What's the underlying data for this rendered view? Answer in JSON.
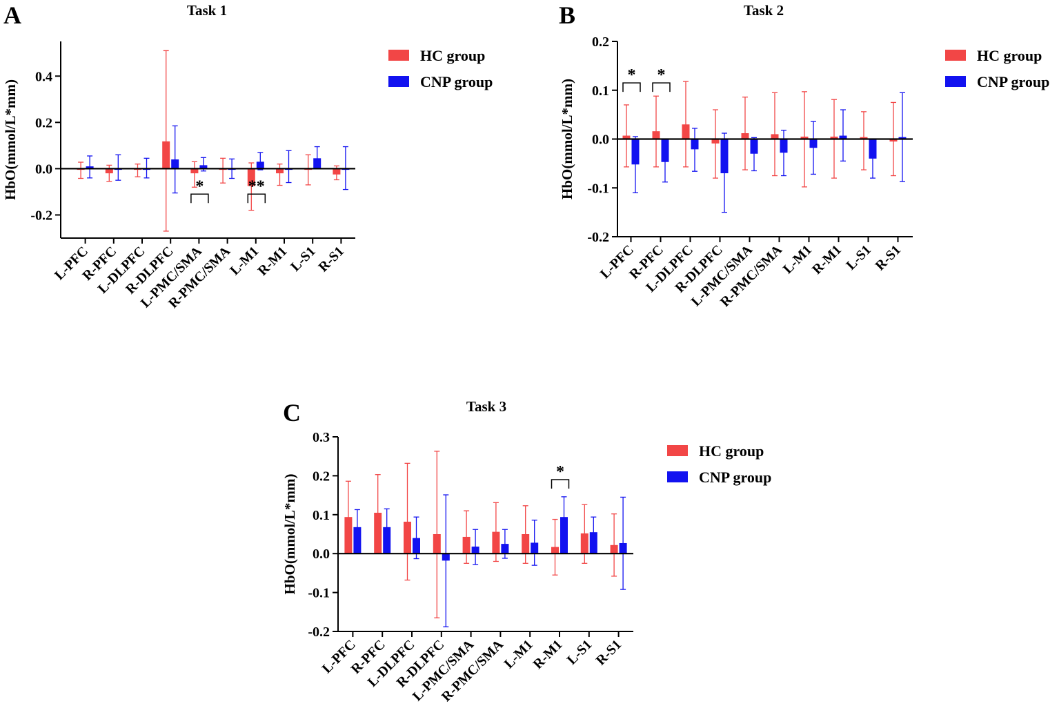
{
  "figure": {
    "colors": {
      "hc": "#f24646",
      "cnp": "#1212f0",
      "axis": "#000000"
    }
  },
  "chart_data": [
    {
      "panel_label": "A",
      "type": "bar",
      "title": "Task 1",
      "xlabel": "",
      "ylabel": "HbO(mmol/L*mm)",
      "ylim": [
        -0.3,
        0.55
      ],
      "yticks": [
        -0.2,
        0.0,
        0.2,
        0.4
      ],
      "ytick_labels": [
        "-0.2",
        "0.0",
        "0.2",
        "0.4"
      ],
      "categories": [
        "L-PFC",
        "R-PFC",
        "L-DLPFC",
        "R-DLPFC",
        "L-PMC/SMA",
        "R-PMC/SMA",
        "L-M1",
        "R-M1",
        "L-S1",
        "R-S1"
      ],
      "series": [
        {
          "name": "HC group",
          "key": "hc",
          "values": [
            -0.005,
            -0.02,
            -0.005,
            0.118,
            -0.02,
            -0.005,
            -0.075,
            -0.02,
            -0.005,
            -0.025
          ],
          "err_lower": [
            -0.042,
            -0.055,
            -0.035,
            -0.27,
            -0.08,
            -0.062,
            -0.18,
            -0.072,
            -0.07,
            -0.048
          ],
          "err_upper": [
            0.028,
            0.015,
            0.02,
            0.51,
            0.03,
            0.045,
            0.025,
            0.02,
            0.06,
            0.012
          ]
        },
        {
          "name": "CNP group",
          "key": "cnp",
          "values": [
            0.01,
            -0.005,
            -0.005,
            0.04,
            0.015,
            -0.005,
            0.03,
            -0.005,
            0.045,
            -0.005
          ],
          "err_lower": [
            -0.04,
            -0.05,
            -0.04,
            -0.105,
            -0.01,
            -0.042,
            -0.005,
            -0.06,
            0.005,
            -0.09
          ],
          "err_upper": [
            0.055,
            0.06,
            0.045,
            0.185,
            0.048,
            0.042,
            0.07,
            0.078,
            0.095,
            0.095
          ]
        }
      ],
      "significance": [
        {
          "category": "L-PMC/SMA",
          "label": "*"
        },
        {
          "category": "L-M1",
          "label": "**"
        }
      ]
    },
    {
      "panel_label": "B",
      "type": "bar",
      "title": "Task 2",
      "xlabel": "",
      "ylabel": "HbO(mmol/L*mm)",
      "ylim": [
        -0.2,
        0.2
      ],
      "yticks": [
        -0.2,
        -0.1,
        0.0,
        0.1,
        0.2
      ],
      "ytick_labels": [
        "-0.2",
        "-0.1",
        "0.0",
        "0.1",
        "0.2"
      ],
      "categories": [
        "L-PFC",
        "R-PFC",
        "L-DLPFC",
        "R-DLPFC",
        "L-PMC/SMA",
        "R-PMC/SMA",
        "L-M1",
        "R-M1",
        "L-S1",
        "R-S1"
      ],
      "series": [
        {
          "name": "HC group",
          "key": "hc",
          "values": [
            0.007,
            0.016,
            0.03,
            -0.009,
            0.012,
            0.01,
            0.005,
            0.005,
            0.004,
            -0.005
          ],
          "err_lower": [
            -0.057,
            -0.057,
            -0.057,
            -0.08,
            -0.063,
            -0.075,
            -0.098,
            -0.08,
            -0.063,
            -0.075
          ],
          "err_upper": [
            0.07,
            0.088,
            0.118,
            0.06,
            0.086,
            0.095,
            0.097,
            0.081,
            0.056,
            0.075
          ]
        },
        {
          "name": "CNP group",
          "key": "cnp",
          "values": [
            -0.052,
            -0.047,
            -0.021,
            -0.07,
            -0.03,
            -0.028,
            -0.018,
            0.007,
            -0.04,
            0.004
          ],
          "err_lower": [
            -0.11,
            -0.088,
            -0.066,
            -0.15,
            -0.065,
            -0.075,
            -0.072,
            -0.045,
            -0.08,
            -0.087
          ],
          "err_upper": [
            0.005,
            -0.003,
            0.022,
            0.012,
            0.003,
            0.018,
            0.036,
            0.06,
            0.0,
            0.095
          ]
        }
      ],
      "significance": [
        {
          "category": "L-PFC",
          "label": "*"
        },
        {
          "category": "R-PFC",
          "label": "*"
        }
      ]
    },
    {
      "panel_label": "C",
      "type": "bar",
      "title": "Task 3",
      "xlabel": "",
      "ylabel": "HbO(mmol/L*mm)",
      "ylim": [
        -0.2,
        0.3
      ],
      "yticks": [
        -0.2,
        -0.1,
        0.0,
        0.1,
        0.2,
        0.3
      ],
      "ytick_labels": [
        "-0.2",
        "-0.1",
        "0.0",
        "0.1",
        "0.2",
        "0.3"
      ],
      "categories": [
        "L-PFC",
        "R-PFC",
        "L-DLPFC",
        "R-DLPFC",
        "L-PMC/SMA",
        "R-PMC/SMA",
        "L-M1",
        "R-M1",
        "L-S1",
        "R-S1"
      ],
      "series": [
        {
          "name": "HC group",
          "key": "hc",
          "values": [
            0.094,
            0.105,
            0.082,
            0.05,
            0.043,
            0.056,
            0.05,
            0.017,
            0.052,
            0.022
          ],
          "err_lower": [
            0.0,
            0.007,
            -0.068,
            -0.165,
            -0.025,
            -0.02,
            -0.025,
            -0.055,
            -0.025,
            -0.058
          ],
          "err_upper": [
            0.186,
            0.203,
            0.232,
            0.263,
            0.11,
            0.131,
            0.123,
            0.088,
            0.126,
            0.102
          ]
        },
        {
          "name": "CNP group",
          "key": "cnp",
          "values": [
            0.068,
            0.068,
            0.04,
            -0.018,
            0.018,
            0.025,
            0.028,
            0.094,
            0.055,
            0.027
          ],
          "err_lower": [
            0.022,
            0.022,
            -0.013,
            -0.188,
            -0.028,
            -0.012,
            -0.03,
            0.045,
            0.016,
            -0.092
          ],
          "err_upper": [
            0.113,
            0.115,
            0.094,
            0.151,
            0.062,
            0.062,
            0.086,
            0.146,
            0.094,
            0.145
          ]
        }
      ],
      "significance": [
        {
          "category": "R-M1",
          "label": "*"
        }
      ]
    }
  ]
}
